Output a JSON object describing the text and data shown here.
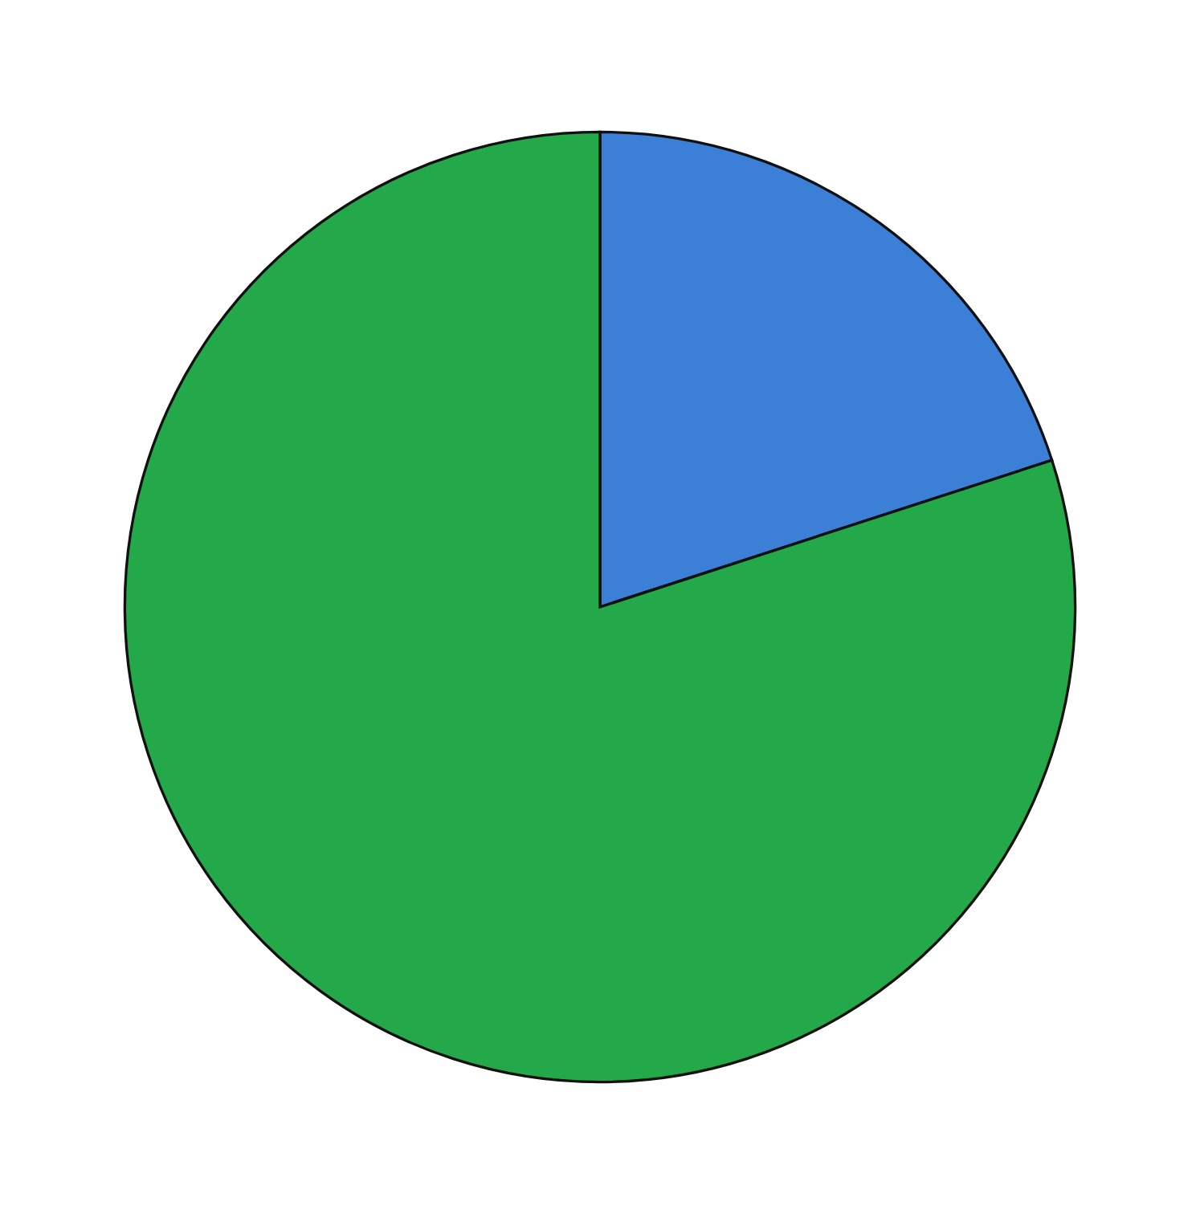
{
  "chart_data": {
    "type": "pie",
    "categories": [
      null,
      null
    ],
    "values": [
      20,
      80
    ],
    "colors": [
      "#3b7fd6",
      "#23a84a"
    ]
  }
}
